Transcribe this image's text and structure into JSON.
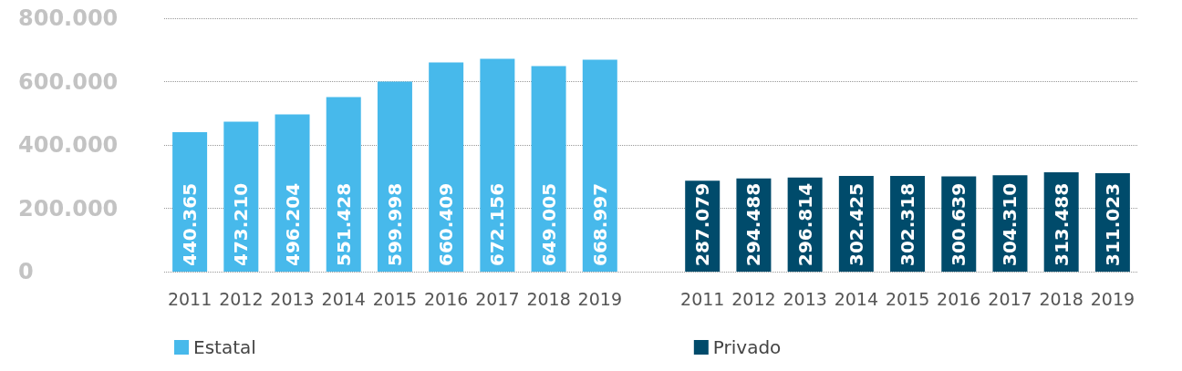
{
  "chart_data": {
    "type": "bar",
    "categories": [
      "2011",
      "2012",
      "2013",
      "2014",
      "2015",
      "2016",
      "2017",
      "2018",
      "2019",
      null,
      "2011",
      "2012",
      "2013",
      "2014",
      "2015",
      "2016",
      "2017",
      "2018",
      "2019"
    ],
    "series": [
      {
        "name": "Estatal",
        "color": "#47b9eb",
        "values": [
          440365,
          473210,
          496204,
          551428,
          599998,
          660409,
          672156,
          649005,
          668997,
          null,
          null,
          null,
          null,
          null,
          null,
          null,
          null,
          null,
          null
        ],
        "value_labels": [
          "440.365",
          "473.210",
          "496.204",
          "551.428",
          "599.998",
          "660.409",
          "672.156",
          "649.005",
          "668.997",
          null,
          null,
          null,
          null,
          null,
          null,
          null,
          null,
          null,
          null
        ]
      },
      {
        "name": "Privado",
        "color": "#004b6b",
        "values": [
          null,
          null,
          null,
          null,
          null,
          null,
          null,
          null,
          null,
          null,
          287079,
          294488,
          296814,
          302425,
          302318,
          300639,
          304310,
          313488,
          311023
        ],
        "value_labels": [
          null,
          null,
          null,
          null,
          null,
          null,
          null,
          null,
          null,
          null,
          "287.079",
          "294.488",
          "296.814",
          "302.425",
          "302.318",
          "300.639",
          "304.310",
          "313.488",
          "311.023"
        ]
      }
    ],
    "ylim": [
      0,
      800000
    ],
    "yticks": [
      {
        "value": 0,
        "label": "0"
      },
      {
        "value": 200000,
        "label": "200.000"
      },
      {
        "value": 400000,
        "label": "400.000"
      },
      {
        "value": 600000,
        "label": "600.000"
      },
      {
        "value": 800000,
        "label": "800.000"
      }
    ],
    "grid": "y",
    "legend": "bottom left"
  }
}
